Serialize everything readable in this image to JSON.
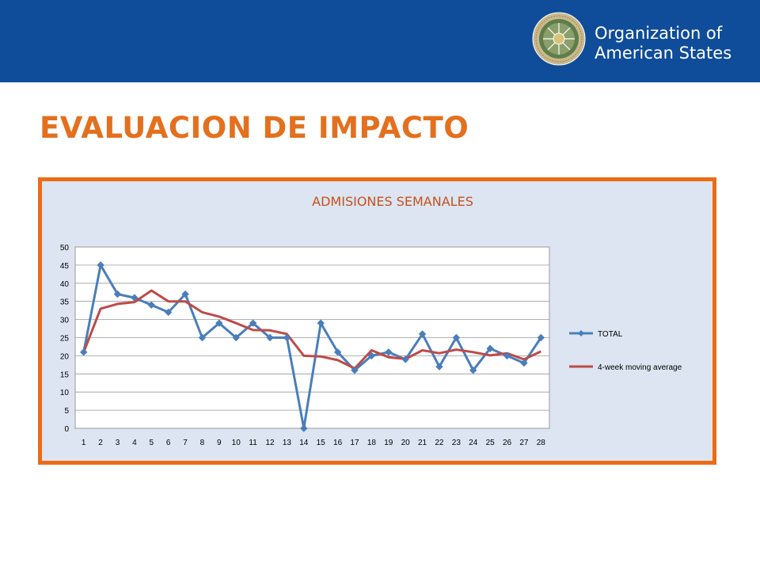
{
  "header": {
    "org_line1": "Organization of",
    "org_line2": "American States",
    "seal_text": "ORGANIZATION OF AMERICAN STATES"
  },
  "slide": {
    "title": "EVALUACION DE IMPACTO"
  },
  "colors": {
    "header_bg": "#0f4c9a",
    "title": "#e4701e",
    "frame": "#ec6c16",
    "plot_bg": "#dce5f1",
    "chart_title": "#c8501a",
    "series_total": "#4a7ebb",
    "series_avg": "#be4b48"
  },
  "chart_data": {
    "type": "line",
    "title": "ADMISIONES SEMANALES",
    "xlabel": "",
    "ylabel": "",
    "x": [
      1,
      2,
      3,
      4,
      5,
      6,
      7,
      8,
      9,
      10,
      11,
      12,
      13,
      14,
      15,
      16,
      17,
      18,
      19,
      20,
      21,
      22,
      23,
      24,
      25,
      26,
      27,
      28
    ],
    "ylim": [
      0,
      50
    ],
    "yticks": [
      0,
      5,
      10,
      15,
      20,
      25,
      30,
      35,
      40,
      45,
      50
    ],
    "grid": true,
    "legend_position": "right",
    "series": [
      {
        "name": "TOTAL",
        "marker": "diamond",
        "color": "#4a7ebb",
        "values": [
          21,
          45,
          37,
          36,
          34,
          32,
          37,
          25,
          29,
          25,
          29,
          25,
          25,
          0,
          29,
          21,
          16,
          20,
          21,
          19,
          26,
          17,
          25,
          16,
          22,
          20,
          18,
          25
        ]
      },
      {
        "name": "4-week moving average",
        "marker": "none",
        "color": "#be4b48",
        "values": [
          21,
          33,
          34.3,
          34.8,
          38,
          35,
          35,
          32,
          30.8,
          29,
          27.1,
          27,
          26,
          20,
          19.8,
          18.8,
          16.5,
          21.5,
          19.6,
          19.1,
          21.5,
          20.7,
          21.7,
          21,
          20.1,
          20.7,
          19,
          21.2
        ]
      }
    ]
  }
}
